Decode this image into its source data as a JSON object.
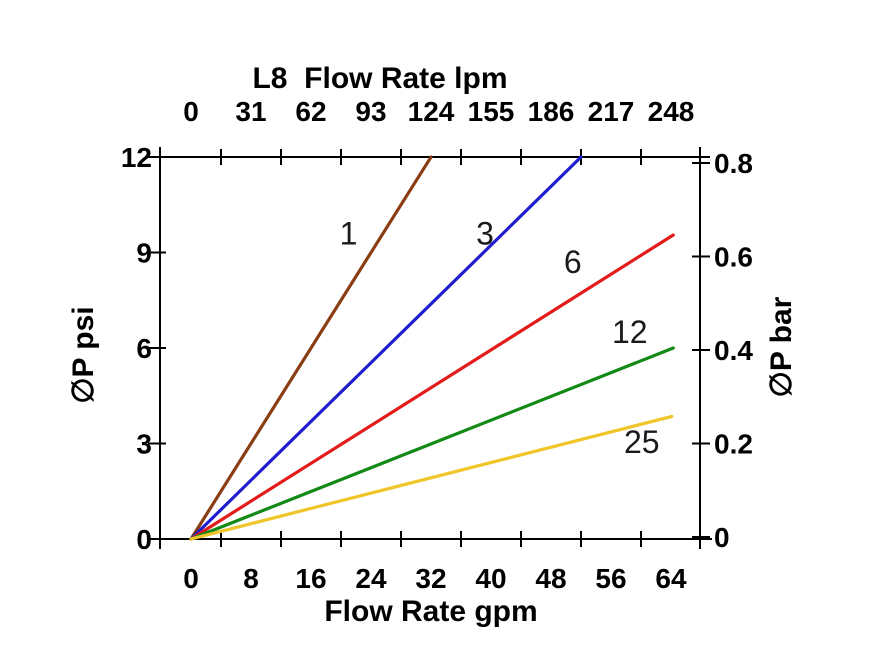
{
  "chart_data": {
    "type": "line",
    "title": "L8  Flow Rate lpm",
    "top_axis": {
      "title": "L8  Flow Rate lpm",
      "unit": "lpm",
      "tick_labels": [
        "0",
        "31",
        "62",
        "93",
        "124",
        "155",
        "186",
        "217",
        "248"
      ],
      "tick_positions_gpm": [
        0,
        8,
        16,
        24,
        32,
        40,
        48,
        56,
        64
      ]
    },
    "bottom_axis": {
      "title": "Flow Rate gpm",
      "unit": "gpm",
      "tick_labels": [
        "0",
        "8",
        "16",
        "24",
        "32",
        "40",
        "48",
        "56",
        "64"
      ],
      "tick_positions_gpm": [
        0,
        8,
        16,
        24,
        32,
        40,
        48,
        56,
        64
      ]
    },
    "left_axis": {
      "title": "∅P psi",
      "unit": "psi",
      "tick_labels": [
        "0",
        "3",
        "6",
        "9",
        "12"
      ],
      "tick_values": [
        0,
        3,
        6,
        9,
        12
      ],
      "range": [
        0,
        12
      ]
    },
    "right_axis": {
      "title": "∅P bar",
      "unit": "bar",
      "tick_labels": [
        "0",
        "0.2",
        "0.4",
        "0.6",
        "0.8"
      ],
      "tick_values": [
        0,
        0.2,
        0.4,
        0.6,
        0.8
      ],
      "range": [
        0,
        0.8
      ]
    },
    "minor_tick_positions_gpm": [
      4,
      12,
      20,
      28,
      36,
      44,
      52,
      60
    ],
    "axis_color": "#000000",
    "series": [
      {
        "name": "1",
        "color": "#8a3c12",
        "points_gpm_psi": [
          [
            0,
            0
          ],
          [
            32,
            12
          ]
        ],
        "label": {
          "text": "1",
          "gpm": 21.0,
          "psi": 9.6
        }
      },
      {
        "name": "3",
        "color": "#1e1ecf",
        "points_gpm_psi": [
          [
            0,
            0
          ],
          [
            52,
            12
          ]
        ],
        "label": {
          "text": "3",
          "gpm": 39.2,
          "psi": 9.6
        }
      },
      {
        "name": "6",
        "color": "#e31b1b",
        "points_gpm_psi": [
          [
            0,
            0
          ],
          [
            64.3,
            9.55
          ]
        ],
        "label": {
          "text": "6",
          "gpm": 50.9,
          "psi": 8.7
        }
      },
      {
        "name": "12",
        "color": "#148a16",
        "points_gpm_psi": [
          [
            0,
            0
          ],
          [
            64.3,
            6.0
          ]
        ],
        "label": {
          "text": "12",
          "gpm": 58.5,
          "psi": 6.5
        }
      },
      {
        "name": "25",
        "color": "#f0c52a",
        "points_gpm_psi": [
          [
            0,
            0
          ],
          [
            64.1,
            3.85
          ]
        ],
        "label": {
          "text": "25",
          "gpm": 60.1,
          "psi": 3.05
        }
      }
    ]
  }
}
